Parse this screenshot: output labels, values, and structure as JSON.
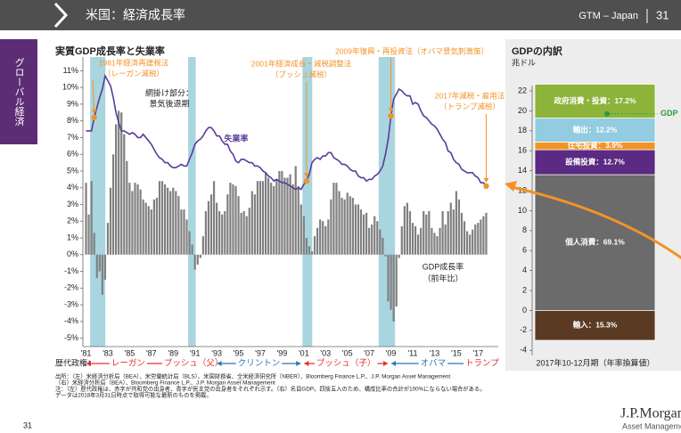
{
  "header": {
    "title": "米国：経済成長率",
    "brand": "GTM – Japan",
    "page": "31"
  },
  "side_tab": "グローバル経済",
  "chart_data": [
    {
      "type": "bar_line",
      "title": "実質GDP成長率と失業率",
      "categories": [
        "'81",
        null,
        null,
        null,
        null,
        null,
        null,
        null,
        "'83",
        null,
        null,
        null,
        null,
        null,
        null,
        null,
        "'85",
        null,
        null,
        null,
        null,
        null,
        null,
        null,
        "'87",
        null,
        null,
        null,
        null,
        null,
        null,
        null,
        "'89",
        null,
        null,
        null,
        null,
        null,
        null,
        null,
        "'91",
        null,
        null,
        null,
        null,
        null,
        null,
        null,
        "'93",
        null,
        null,
        null,
        null,
        null,
        null,
        null,
        "'95",
        null,
        null,
        null,
        null,
        null,
        null,
        null,
        "'97",
        null,
        null,
        null,
        null,
        null,
        null,
        null,
        "'99",
        null,
        null,
        null,
        null,
        null,
        null,
        null,
        "'01",
        null,
        null,
        null,
        null,
        null,
        null,
        null,
        "'03",
        null,
        null,
        null,
        null,
        null,
        null,
        null,
        "'05",
        null,
        null,
        null,
        null,
        null,
        null,
        null,
        "'07",
        null,
        null,
        null,
        null,
        null,
        null,
        null,
        "'09",
        null,
        null,
        null,
        null,
        null,
        null,
        null,
        "'11",
        null,
        null,
        null,
        null,
        null,
        null,
        null,
        "'13",
        null,
        null,
        null,
        null,
        null,
        null,
        null,
        "'15",
        null,
        null,
        null,
        null,
        null,
        null,
        null,
        "'17",
        null,
        null,
        null
      ],
      "xlim": [
        1981,
        2018
      ],
      "series": [
        {
          "name": "GDP成長率",
          "subname": "（前年比）",
          "type": "bar",
          "color": "#808080",
          "values": [
            4.3,
            2.4,
            4.4,
            1.3,
            -1.4,
            -1.0,
            -2.4,
            -1.5,
            1.9,
            4.0,
            6.0,
            7.8,
            8.6,
            8.5,
            7.2,
            5.6,
            4.3,
            3.8,
            4.3,
            4.2,
            3.9,
            3.3,
            3.1,
            2.9,
            2.7,
            3.3,
            3.4,
            4.4,
            4.4,
            4.2,
            4.0,
            3.8,
            4.0,
            3.8,
            3.5,
            2.7,
            2.7,
            2.1,
            1.4,
            0.6,
            -0.9,
            -0.6,
            -0.2,
            1.1,
            2.6,
            3.2,
            3.6,
            4.4,
            3.1,
            2.6,
            2.4,
            2.6,
            3.6,
            4.3,
            4.2,
            4.1,
            3.5,
            2.5,
            2.6,
            2.3,
            2.8,
            3.8,
            3.6,
            4.4,
            4.4,
            4.4,
            4.9,
            4.6,
            4.3,
            4.1,
            4.5,
            5.0,
            5.0,
            4.6,
            4.6,
            4.8,
            4.2,
            5.3,
            4.1,
            3.0,
            2.3,
            1.0,
            0.5,
            0.2,
            1.1,
            1.6,
            2.1,
            2.0,
            1.7,
            2.1,
            3.3,
            4.3,
            4.3,
            3.8,
            3.4,
            3.3,
            3.7,
            3.5,
            3.4,
            3.0,
            3.0,
            2.7,
            2.4,
            2.5,
            1.6,
            1.8,
            2.3,
            2.0,
            1.5,
            1.0,
            -0.1,
            -2.8,
            -3.3,
            -4.0,
            -3.1,
            -0.2,
            1.7,
            2.9,
            3.1,
            2.6,
            1.9,
            1.7,
            1.2,
            1.6,
            2.6,
            2.4,
            2.6,
            1.6,
            1.3,
            1.1,
            1.6,
            2.6,
            1.8,
            2.6,
            3.1,
            2.7,
            3.8,
            3.3,
            2.5,
            2.0,
            1.4,
            1.2,
            1.5,
            1.8,
            1.9,
            2.1,
            2.3,
            2.5
          ]
        },
        {
          "name": "失業率",
          "type": "line",
          "color": "#5b3c9a",
          "values": [
            7.4,
            7.4,
            7.4,
            8.2,
            8.8,
            9.4,
            9.9,
            10.7,
            10.4,
            10.1,
            9.4,
            8.5,
            7.9,
            7.4,
            7.4,
            7.3,
            7.2,
            7.3,
            7.2,
            7.0,
            7.0,
            7.2,
            7.0,
            6.8,
            6.6,
            6.3,
            6.0,
            5.8,
            5.7,
            5.5,
            5.5,
            5.3,
            5.2,
            5.2,
            5.3,
            5.4,
            5.3,
            5.3,
            5.7,
            6.1,
            6.6,
            6.8,
            6.9,
            7.1,
            7.4,
            7.6,
            7.6,
            7.4,
            7.1,
            7.1,
            6.8,
            6.6,
            6.6,
            6.2,
            6.0,
            5.6,
            5.5,
            5.7,
            5.7,
            5.6,
            5.5,
            5.5,
            5.3,
            5.3,
            5.2,
            5.0,
            4.9,
            4.7,
            4.6,
            4.4,
            4.5,
            4.4,
            4.3,
            4.3,
            4.2,
            4.1,
            4.0,
            3.9,
            4.0,
            3.9,
            4.2,
            4.4,
            4.8,
            5.5,
            5.7,
            5.8,
            5.7,
            5.9,
            5.9,
            6.1,
            6.1,
            5.8,
            5.7,
            5.6,
            5.4,
            5.4,
            5.3,
            5.1,
            5.0,
            5.0,
            4.7,
            4.6,
            4.6,
            4.4,
            4.5,
            4.5,
            4.7,
            4.8,
            5.0,
            5.3,
            6.0,
            6.9,
            8.3,
            9.3,
            9.6,
            9.9,
            9.8,
            9.6,
            9.5,
            9.5,
            9.0,
            9.1,
            9.0,
            8.6,
            8.3,
            8.2,
            8.0,
            7.8,
            7.7,
            7.5,
            7.2,
            6.9,
            6.7,
            6.2,
            6.1,
            5.7,
            5.5,
            5.4,
            5.1,
            5.0,
            4.9,
            4.9,
            4.9,
            4.7,
            4.6,
            4.3,
            4.3,
            4.1
          ]
        }
      ],
      "ylim": [
        -5.5,
        11.5
      ],
      "yticks": [
        {
          "value": -5,
          "label": "-5%"
        },
        {
          "value": -4,
          "label": "-4%"
        },
        {
          "value": -3,
          "label": "-3%"
        },
        {
          "value": -2,
          "label": "-2%"
        },
        {
          "value": -1,
          "label": "-1%"
        },
        {
          "value": 0,
          "label": "0%"
        },
        {
          "value": 1,
          "label": "1%"
        },
        {
          "value": 2,
          "label": "2%"
        },
        {
          "value": 3,
          "label": "3%"
        },
        {
          "value": 4,
          "label": "4%"
        },
        {
          "value": 5,
          "label": "5%"
        },
        {
          "value": 6,
          "label": "6%"
        },
        {
          "value": 7,
          "label": "7%"
        },
        {
          "value": 8,
          "label": "8%"
        },
        {
          "value": 9,
          "label": "9%"
        },
        {
          "value": 10,
          "label": "10%"
        },
        {
          "value": 11,
          "label": "11%"
        }
      ],
      "recessions": [
        [
          1981.5,
          1982.9
        ],
        [
          1990.5,
          1991.2
        ],
        [
          2001.0,
          2001.9
        ],
        [
          2008.0,
          2009.5
        ]
      ],
      "recession_color": "#a9d5df",
      "recession_note": [
        "網掛け部分：",
        "景気後退期"
      ],
      "annotations": [
        {
          "lines": [
            "1981年経済再建税法",
            "（レーガン減税）"
          ],
          "point": 3,
          "color": "#f39326"
        },
        {
          "lines": [
            "2001年経済成長・減税調整法",
            "（ブッシュ減税）"
          ],
          "point": 81,
          "color": "#f39326"
        },
        {
          "lines": [
            "2009年復興・再投資法（オバマ景気刺激策）"
          ],
          "point": 112,
          "color": "#f39326"
        },
        {
          "lines": [
            "2017年減税・雇用法",
            "（トランプ減税）"
          ],
          "point": 147,
          "color": "#f39326"
        }
      ],
      "administrations_label": "歴代政権：",
      "administrations": [
        {
          "name": "レーガン",
          "start": 1981,
          "end": 1989,
          "color": "#e3302f"
        },
        {
          "name": "ブッシュ（父）",
          "start": 1989,
          "end": 1993,
          "color": "#e3302f"
        },
        {
          "name": "クリントン",
          "start": 1993,
          "end": 2001,
          "color": "#2e75b6"
        },
        {
          "name": "ブッシュ（子）",
          "start": 2001,
          "end": 2009,
          "color": "#e3302f"
        },
        {
          "name": "オバマ",
          "start": 2009,
          "end": 2017,
          "color": "#2e75b6"
        },
        {
          "name": "トランプ",
          "start": 2017,
          "end": 2018,
          "color": "#e3302f"
        }
      ]
    },
    {
      "type": "stacked_bar",
      "title": "GDPの内訳",
      "ylabel": "兆ドル",
      "xlabel": "2017年10-12月期（年率換算値）",
      "ylim": [
        -4.5,
        22.5
      ],
      "yticks": [
        -4,
        -2,
        0,
        2,
        4,
        6,
        8,
        10,
        12,
        14,
        16,
        18,
        20,
        22
      ],
      "series": [
        {
          "name": "個人消費",
          "label": "個人消費：69.1%",
          "color": "#6b6b6b",
          "values": [
            13.6
          ]
        },
        {
          "name": "設備投資",
          "label": "設備投資：12.7%",
          "color": "#5b2a82",
          "values": [
            2.5
          ]
        },
        {
          "name": "住宅投資",
          "label": "住宅投資：3.9%",
          "color": "#f39326",
          "values": [
            0.77
          ]
        },
        {
          "name": "輸出",
          "label": "輸出：12.2%",
          "color": "#93cbe0",
          "values": [
            2.4
          ]
        },
        {
          "name": "政府消費・投資",
          "label": "政府消費・投資：17.2%",
          "color": "#8db33a",
          "values": [
            3.4
          ]
        },
        {
          "name": "輸入",
          "label": "輸入：15.3%",
          "color": "#5a3a22",
          "values": [
            -3.0
          ]
        }
      ],
      "gdp": {
        "name": "GDP",
        "value": 19.7,
        "color": "#2e9a3e"
      }
    }
  ],
  "footnotes": [
    "出所：（左）米経済分析局（BEA）、米労働統計局（BLS）、米国財務省、全米経済研究所（NBER）、Bloomberg Finance L.P.、J.P. Morgan Asset Management",
    "（右）米経済分析局（BEA）、Bloomberg Finance L.P.、J.P. Morgan Asset Management",
    "注：（左）歴代政権は、赤字が共和党の出身者、青字が民主党の出身者をそれぞれ示す。（右）名目GDP。四捨五入のため、構成比率の合計が100%にならない場合がある。",
    "データは2018年3月31日時点で取得可能な最新のものを掲載。"
  ],
  "page_number": "31",
  "logo": {
    "name": "J.P.Morgan",
    "sub": "Asset Management"
  }
}
